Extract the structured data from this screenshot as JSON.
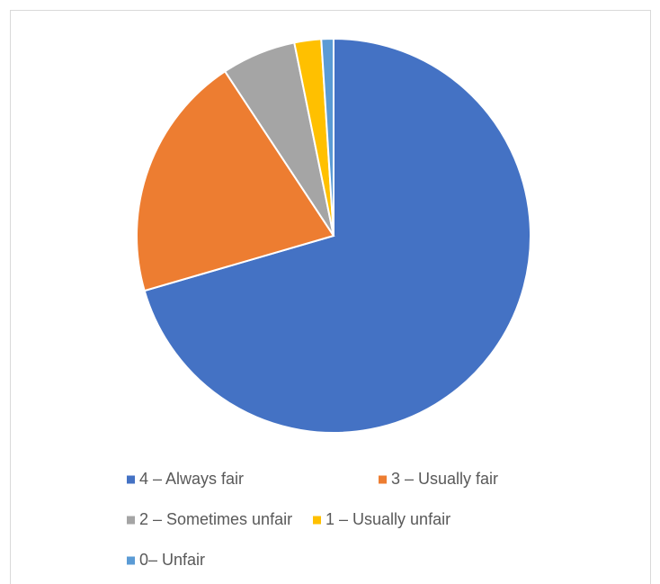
{
  "chart_data": {
    "type": "pie",
    "categories": [
      "4 – Always fair",
      "3 – Usually fair",
      "2 – Sometimes unfair",
      "1 – Usually unfair",
      "0– Unfair"
    ],
    "values": [
      70.5,
      20.2,
      6.1,
      2.2,
      1.0
    ],
    "colors": [
      "#4472c4",
      "#ed7d31",
      "#a5a5a5",
      "#ffc000",
      "#5b9bd5"
    ],
    "legend": "bottom"
  }
}
